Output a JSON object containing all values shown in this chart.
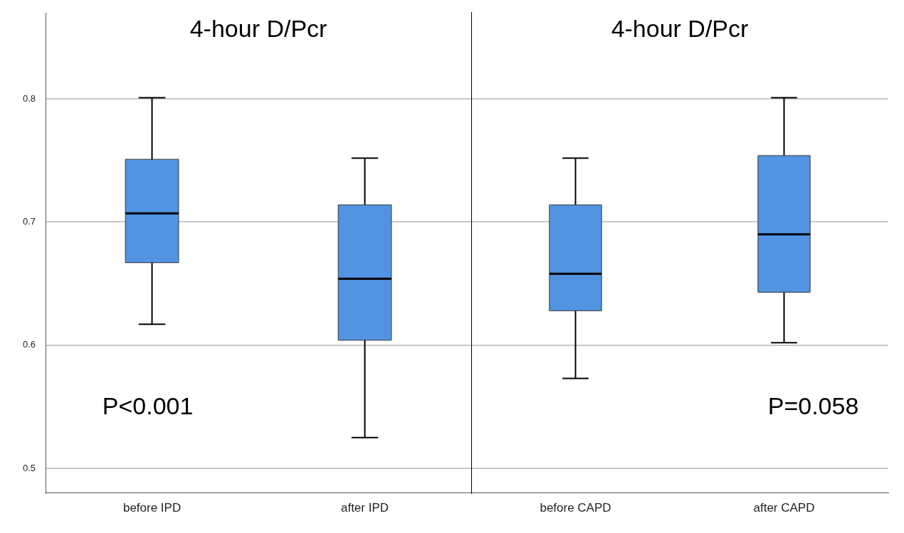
{
  "chart_data": [
    {
      "type": "box",
      "title": "4-hour D/Pcr",
      "categories": [
        "before IPD",
        "after IPD"
      ],
      "color": "#5294e2",
      "boxes": [
        {
          "low": 0.617,
          "q1": 0.667,
          "median": 0.707,
          "q3": 0.751,
          "high": 0.801
        },
        {
          "low": 0.525,
          "q1": 0.604,
          "median": 0.654,
          "q3": 0.714,
          "high": 0.752
        }
      ],
      "ylim": [
        0.48,
        0.87
      ],
      "yticks": [
        0.5,
        0.6,
        0.7,
        0.8
      ],
      "grid": "y",
      "annotations": [
        "P<0.001"
      ]
    },
    {
      "type": "box",
      "title": "4-hour D/Pcr",
      "categories": [
        "before CAPD",
        "after CAPD"
      ],
      "color": "#5294e2",
      "boxes": [
        {
          "low": 0.573,
          "q1": 0.628,
          "median": 0.658,
          "q3": 0.714,
          "high": 0.752
        },
        {
          "low": 0.602,
          "q1": 0.643,
          "median": 0.69,
          "q3": 0.754,
          "high": 0.801
        }
      ],
      "ylim": [
        0.48,
        0.87
      ],
      "yticks": [
        0.5,
        0.6,
        0.7,
        0.8
      ],
      "grid": "y",
      "tick_labels": "x",
      "annotations": [
        "P=0.058"
      ]
    }
  ]
}
